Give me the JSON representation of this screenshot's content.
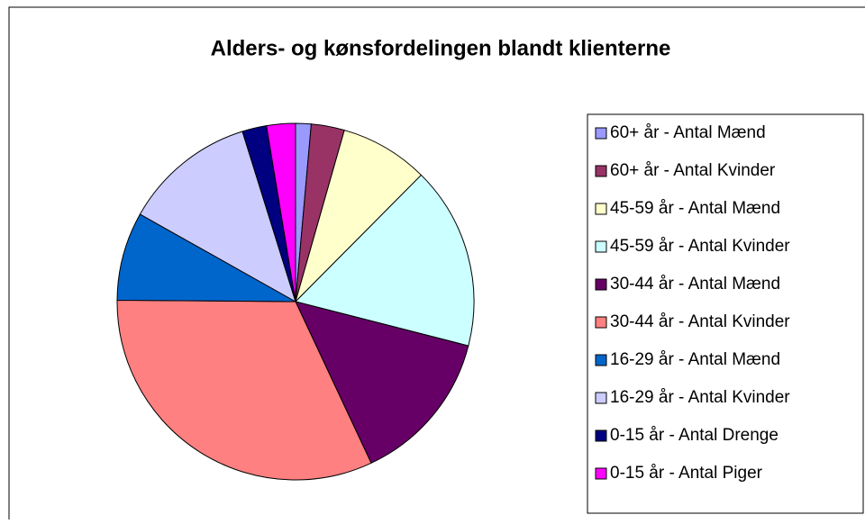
{
  "chart_data": {
    "type": "pie",
    "title": "Alders- og kønsfordelingen blandt klienterne",
    "categories": [
      "60+ år - Antal Mænd",
      "60+ år - Antal Kvinder",
      "45-59 år - Antal Mænd",
      "45-59 år - Antal Kvinder",
      "30-44 år - Antal Mænd",
      "30-44 år - Antal Kvinder",
      "16-29 år - Antal Mænd",
      "16-29 år - Antal Kvinder",
      "0-15 år - Antal Drenge",
      "0-15 år - Antal Piger"
    ],
    "values": [
      1.4,
      3,
      8,
      16.5,
      14,
      32,
      8,
      12,
      2.2,
      2.6
    ],
    "colors": [
      "#9999ff",
      "#993366",
      "#ffffcc",
      "#ccffff",
      "#660066",
      "#ff8080",
      "#0066cc",
      "#ccccff",
      "#000080",
      "#ff00ff"
    ],
    "legend": "right"
  }
}
